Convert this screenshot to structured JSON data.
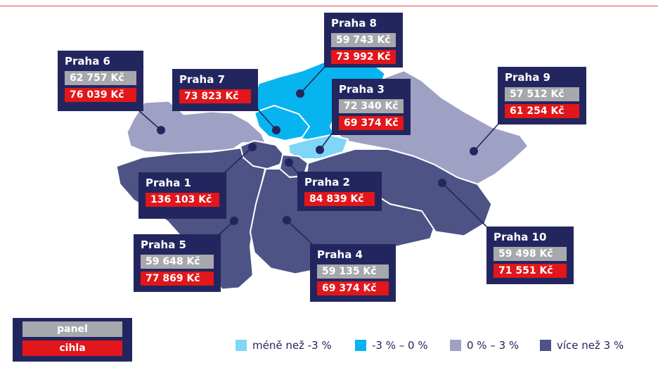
{
  "colors": {
    "less_than_minus3": "#7fd6f6",
    "minus3_to_0": "#08b4ef",
    "zero_to_3": "#9fa1c4",
    "more_than_3": "#4d5385",
    "box": "#23265e",
    "panel": "#a7a8ad",
    "brick": "#e2161b"
  },
  "districts": [
    {
      "id": "praha6",
      "name": "Praha 6",
      "panel": "62 757 Kč",
      "brick": "76 039 Kč"
    },
    {
      "id": "praha7",
      "name": "Praha 7",
      "brick": "73 823 Kč"
    },
    {
      "id": "praha8",
      "name": "Praha 8",
      "panel": "59 743 Kč",
      "brick": "73 992 Kč"
    },
    {
      "id": "praha3",
      "name": "Praha 3",
      "panel": "72 340 Kč",
      "brick": "69 374 Kč"
    },
    {
      "id": "praha9",
      "name": "Praha 9",
      "panel": "57 512 Kč",
      "brick": "61 254 Kč"
    },
    {
      "id": "praha1",
      "name": "Praha 1",
      "brick": "136 103 Kč"
    },
    {
      "id": "praha2",
      "name": "Praha 2",
      "brick": "84 839 Kč"
    },
    {
      "id": "praha5",
      "name": "Praha 5",
      "panel": "59 648 Kč",
      "brick": "77 869 Kč"
    },
    {
      "id": "praha4",
      "name": "Praha 4",
      "panel": "59 135 Kč",
      "brick": "69 374 Kč"
    },
    {
      "id": "praha10",
      "name": "Praha 10",
      "panel": "59 498 Kč",
      "brick": "71 551 Kč"
    }
  ],
  "key": {
    "panel": "panel",
    "brick": "cihla"
  },
  "legend": {
    "less_than_minus3": "méně než -3 %",
    "minus3_to_0": "-3 % – 0 %",
    "zero_to_3": "0 % – 3 %",
    "more_than_3": "více než 3 %"
  }
}
